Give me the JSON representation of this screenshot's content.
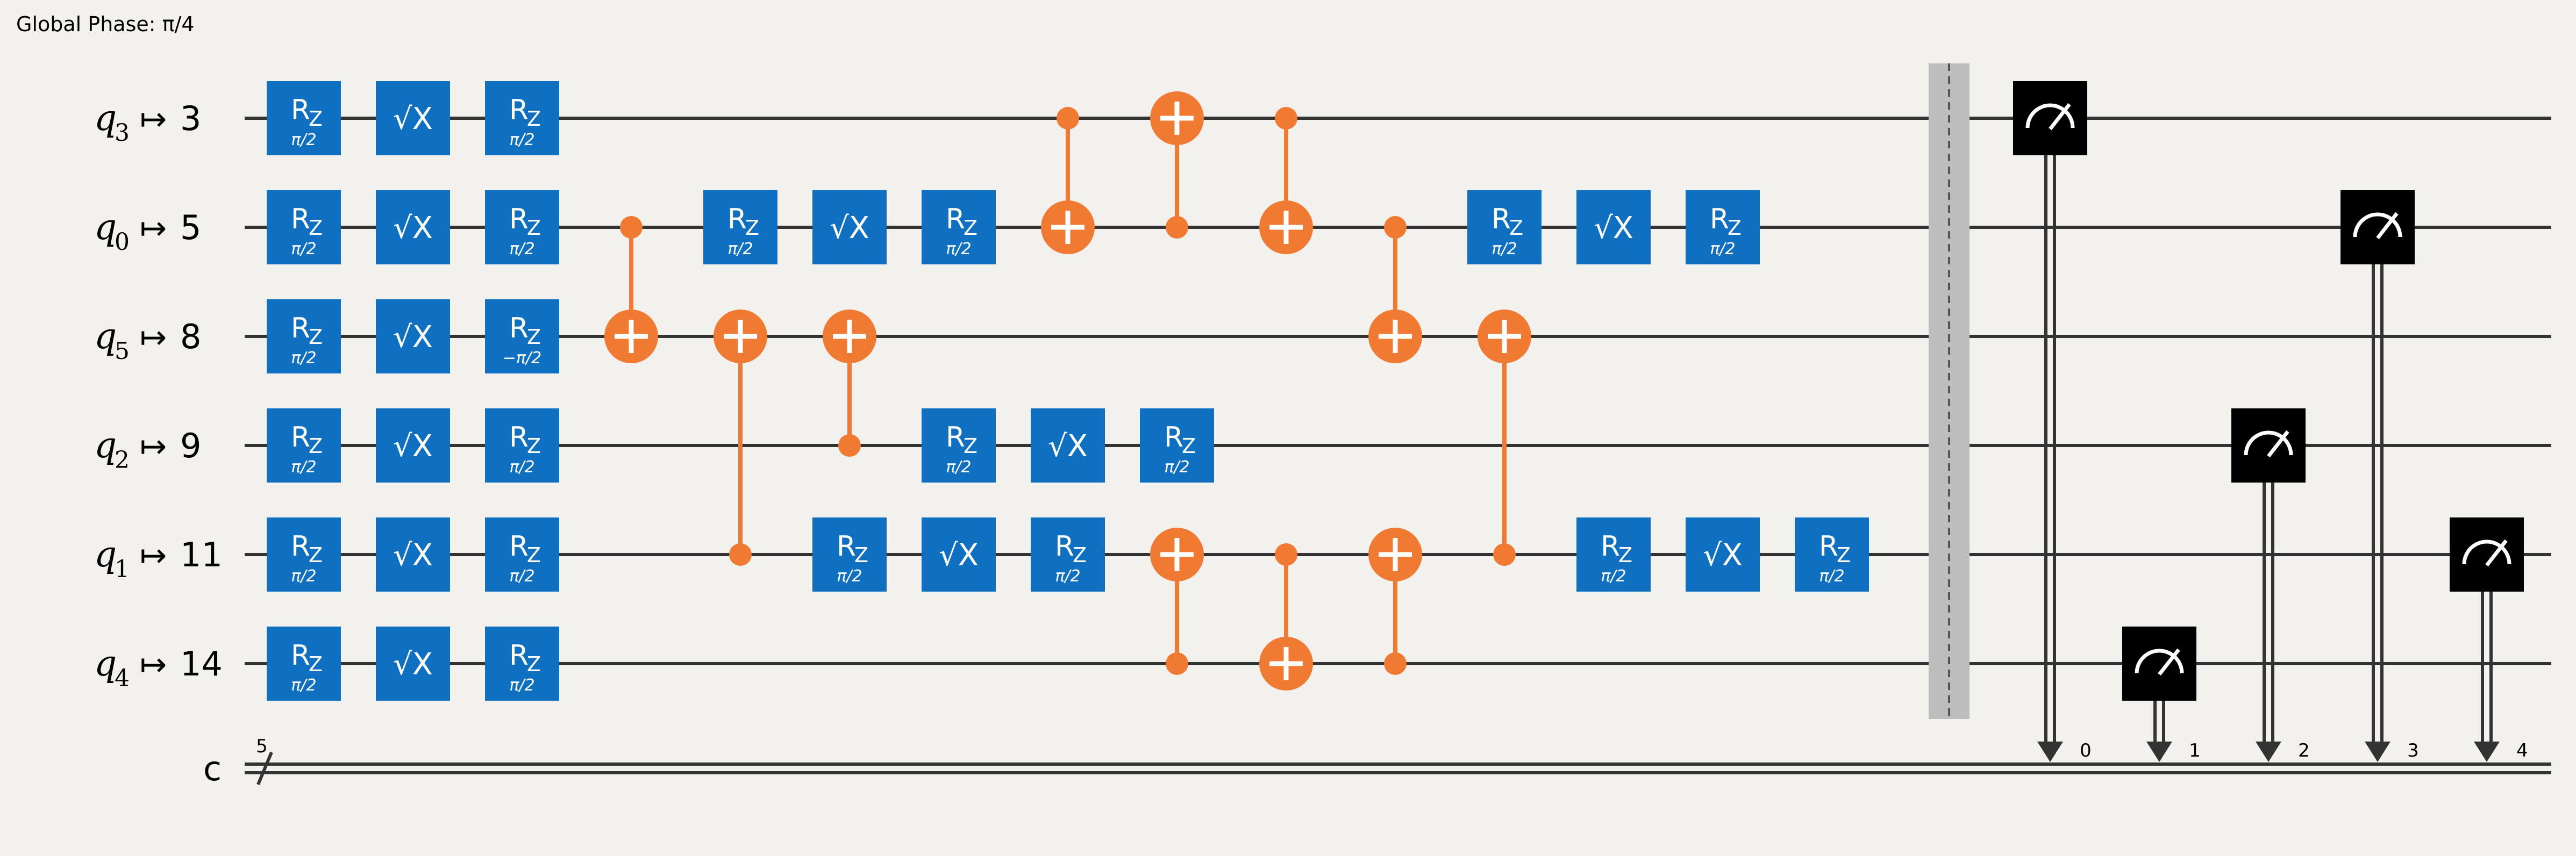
{
  "global_phase": "Global Phase: π/4",
  "colors": {
    "background": "#f2f1ee",
    "wire": "#333333",
    "gate": "#0f6fc1",
    "cx": "#f07a32",
    "measure": "#000000",
    "barrier": "#bdbdbd"
  },
  "qubits": [
    {
      "name": "q",
      "sub": "3",
      "phys": "3"
    },
    {
      "name": "q",
      "sub": "0",
      "phys": "5"
    },
    {
      "name": "q",
      "sub": "5",
      "phys": "8"
    },
    {
      "name": "q",
      "sub": "2",
      "phys": "9"
    },
    {
      "name": "q",
      "sub": "1",
      "phys": "11"
    },
    {
      "name": "q",
      "sub": "4",
      "phys": "14"
    }
  ],
  "arrow": "↦",
  "creg": {
    "name": "c",
    "size": "5"
  },
  "gates": [
    {
      "type": "rz",
      "row": 0,
      "col": 0,
      "param": "π/2"
    },
    {
      "type": "sx",
      "row": 0,
      "col": 1
    },
    {
      "type": "rz",
      "row": 0,
      "col": 2,
      "param": "π/2"
    },
    {
      "type": "rz",
      "row": 1,
      "col": 0,
      "param": "π/2"
    },
    {
      "type": "sx",
      "row": 1,
      "col": 1
    },
    {
      "type": "rz",
      "row": 1,
      "col": 2,
      "param": "π/2"
    },
    {
      "type": "rz",
      "row": 2,
      "col": 0,
      "param": "π/2"
    },
    {
      "type": "sx",
      "row": 2,
      "col": 1
    },
    {
      "type": "rz",
      "row": 2,
      "col": 2,
      "param": "−π/2"
    },
    {
      "type": "rz",
      "row": 3,
      "col": 0,
      "param": "π/2"
    },
    {
      "type": "sx",
      "row": 3,
      "col": 1
    },
    {
      "type": "rz",
      "row": 3,
      "col": 2,
      "param": "π/2"
    },
    {
      "type": "rz",
      "row": 4,
      "col": 0,
      "param": "π/2"
    },
    {
      "type": "sx",
      "row": 4,
      "col": 1
    },
    {
      "type": "rz",
      "row": 4,
      "col": 2,
      "param": "π/2"
    },
    {
      "type": "rz",
      "row": 5,
      "col": 0,
      "param": "π/2"
    },
    {
      "type": "sx",
      "row": 5,
      "col": 1
    },
    {
      "type": "rz",
      "row": 5,
      "col": 2,
      "param": "π/2"
    },
    {
      "type": "rz",
      "row": 1,
      "col": 4,
      "param": "π/2"
    },
    {
      "type": "sx",
      "row": 1,
      "col": 5
    },
    {
      "type": "rz",
      "row": 1,
      "col": 6,
      "param": "π/2"
    },
    {
      "type": "rz",
      "row": 4,
      "col": 5,
      "param": "π/2"
    },
    {
      "type": "sx",
      "row": 4,
      "col": 6
    },
    {
      "type": "rz",
      "row": 4,
      "col": 7,
      "param": "π/2"
    },
    {
      "type": "rz",
      "row": 3,
      "col": 6,
      "param": "π/2"
    },
    {
      "type": "sx",
      "row": 3,
      "col": 7
    },
    {
      "type": "rz",
      "row": 3,
      "col": 8,
      "param": "π/2"
    },
    {
      "type": "rz",
      "row": 1,
      "col": 11,
      "param": "π/2"
    },
    {
      "type": "sx",
      "row": 1,
      "col": 12
    },
    {
      "type": "rz",
      "row": 1,
      "col": 13,
      "param": "π/2"
    },
    {
      "type": "rz",
      "row": 4,
      "col": 12,
      "param": "π/2"
    },
    {
      "type": "sx",
      "row": 4,
      "col": 13
    },
    {
      "type": "rz",
      "row": 4,
      "col": 14,
      "param": "π/2"
    }
  ],
  "cx": [
    {
      "col": 3,
      "control": 1,
      "target": 2
    },
    {
      "col": 4,
      "control": 4,
      "target": 2
    },
    {
      "col": 5,
      "control": 3,
      "target": 2
    },
    {
      "col": 7,
      "control": 0,
      "target": 1
    },
    {
      "col": 8,
      "control": 1,
      "target": 0
    },
    {
      "col": 8,
      "control": 5,
      "target": 4
    },
    {
      "col": 9,
      "control": 0,
      "target": 1
    },
    {
      "col": 9,
      "control": 4,
      "target": 5
    },
    {
      "col": 10,
      "control": 1,
      "target": 2
    },
    {
      "col": 10,
      "control": 5,
      "target": 4
    },
    {
      "col": 11,
      "control": 4,
      "target": 2
    }
  ],
  "measures": [
    {
      "row": 0,
      "bit": "0"
    },
    {
      "row": 5,
      "bit": "1"
    },
    {
      "row": 3,
      "bit": "2"
    },
    {
      "row": 1,
      "bit": "3"
    },
    {
      "row": 4,
      "bit": "4"
    }
  ],
  "gate_labels": {
    "rz_main": "R",
    "rz_sub": "Z",
    "sx": "√X"
  }
}
